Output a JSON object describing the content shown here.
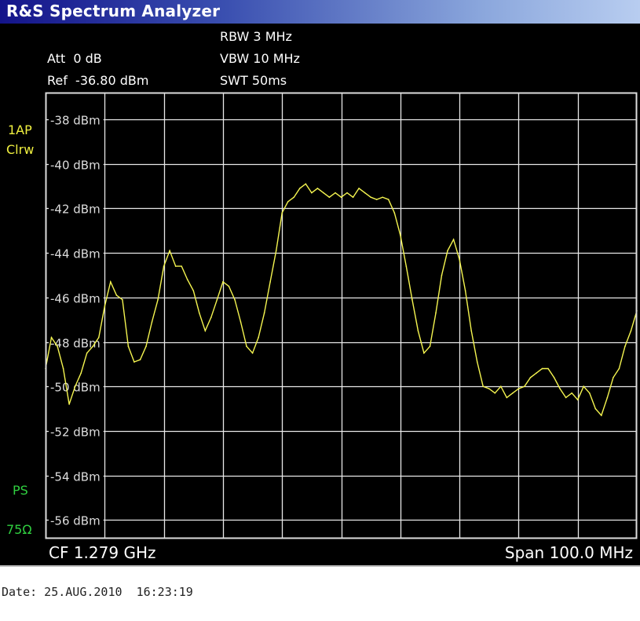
{
  "window": {
    "title": "R&S Spectrum Analyzer"
  },
  "header": {
    "rbw": "RBW 3 MHz",
    "att": "Att  0 dB",
    "vbw": "VBW 10 MHz",
    "ref": "Ref  -36.80 dBm",
    "swt": "SWT 50ms"
  },
  "side_labels": {
    "trace_mode_1": "1AP",
    "trace_mode_2": "Clrw",
    "ps": "PS",
    "impedance": "75Ω"
  },
  "footer": {
    "cf": "CF 1.279 GHz",
    "span": "Span 100.0 MHz"
  },
  "date": "Date: 25.AUG.2010  16:23:19",
  "colors": {
    "trace": "#f5f550",
    "grid": "#e8e8e8",
    "background": "#000000",
    "title_bar_start": "#14148a",
    "title_bar_end": "#b8cdf0"
  },
  "chart_data": {
    "type": "line",
    "xlabel": "",
    "ylabel": "",
    "x_unit": "MHz",
    "xlim": [
      1229,
      1329
    ],
    "ylim": [
      -56.8,
      -36.8
    ],
    "grid": true,
    "y_ticks": [
      -38,
      -40,
      -42,
      -44,
      -46,
      -48,
      -50,
      -52,
      -54,
      -56
    ],
    "y_tick_labels": [
      "-38 dBm",
      "-40 dBm",
      "-42 dBm",
      "-44 dBm",
      "-46 dBm",
      "-48 dBm",
      "-50 dBm",
      "-52 dBm",
      "-54 dBm",
      "-56 dBm"
    ],
    "x_divisions": 10,
    "x_start": 1229,
    "x_step": 1,
    "values": [
      -49.2,
      -47.8,
      -48.2,
      -49.2,
      -50.8,
      -50.0,
      -49.4,
      -48.5,
      -48.2,
      -47.8,
      -46.4,
      -45.3,
      -45.9,
      -46.1,
      -48.2,
      -48.9,
      -48.8,
      -48.2,
      -47.1,
      -46.1,
      -44.6,
      -43.9,
      -44.6,
      -44.6,
      -45.2,
      -45.7,
      -46.7,
      -47.5,
      -46.9,
      -46.1,
      -45.3,
      -45.5,
      -46.1,
      -47.1,
      -48.2,
      -48.5,
      -47.8,
      -46.7,
      -45.3,
      -43.9,
      -42.2,
      -41.7,
      -41.5,
      -41.1,
      -40.9,
      -41.3,
      -41.1,
      -41.3,
      -41.5,
      -41.3,
      -41.5,
      -41.3,
      -41.5,
      -41.1,
      -41.3,
      -41.5,
      -41.6,
      -41.5,
      -41.6,
      -42.2,
      -43.2,
      -44.6,
      -46.1,
      -47.5,
      -48.5,
      -48.2,
      -46.7,
      -45.0,
      -43.9,
      -43.4,
      -44.3,
      -45.7,
      -47.5,
      -48.9,
      -50.0,
      -50.1,
      -50.3,
      -50.0,
      -50.5,
      -50.3,
      -50.1,
      -50.0,
      -49.6,
      -49.4,
      -49.2,
      -49.2,
      -49.6,
      -50.1,
      -50.5,
      -50.3,
      -50.6,
      -50.0,
      -50.3,
      -51.0,
      -51.3,
      -50.5,
      -49.6,
      -49.2,
      -48.2,
      -47.5,
      -46.6
    ]
  }
}
